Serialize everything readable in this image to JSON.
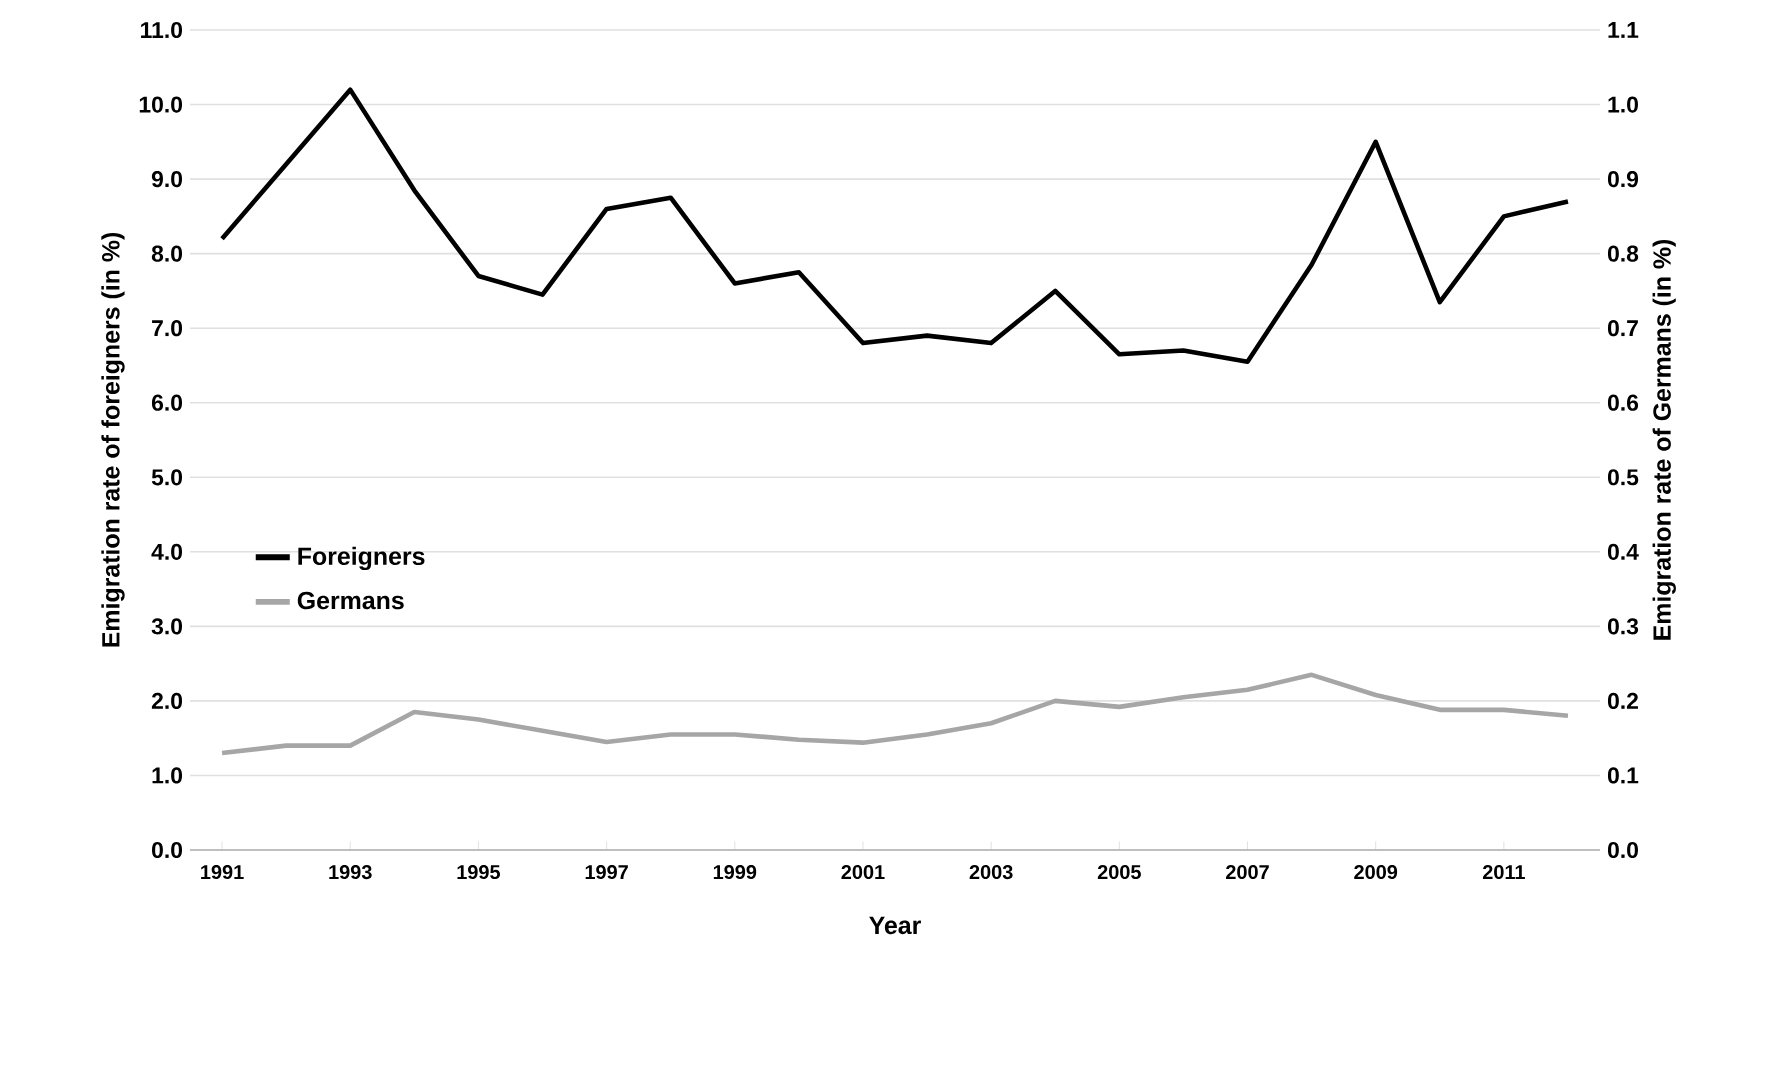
{
  "chart_data": {
    "type": "line",
    "xlabel": "Year",
    "ylabel": "Emigration rate of foreigners (in %)",
    "y2label": "Emigration rate of Germans (in %)",
    "x": [
      1991,
      1992,
      1993,
      1994,
      1995,
      1996,
      1997,
      1998,
      1999,
      2000,
      2001,
      2002,
      2003,
      2004,
      2005,
      2006,
      2007,
      2008,
      2009,
      2010,
      2011,
      2012
    ],
    "series": [
      {
        "name": "Foreigners",
        "color": "#000000",
        "values": [
          8.2,
          9.2,
          10.2,
          8.85,
          7.7,
          7.45,
          8.6,
          8.75,
          7.6,
          7.75,
          6.8,
          6.9,
          6.8,
          7.5,
          6.65,
          6.7,
          6.55,
          7.85,
          9.5,
          7.35,
          8.5,
          8.7
        ]
      },
      {
        "name": "Germans",
        "color": "#a6a6a6",
        "axis": "y2",
        "values": [
          0.13,
          0.14,
          0.14,
          0.185,
          0.175,
          0.16,
          0.145,
          0.155,
          0.155,
          0.148,
          0.144,
          0.155,
          0.17,
          0.2,
          0.192,
          0.205,
          0.215,
          0.235,
          0.208,
          0.188,
          0.188,
          0.18
        ]
      }
    ],
    "xlim": [
      1990.5,
      2012.5
    ],
    "xticks": [
      1991,
      1993,
      1995,
      1997,
      1999,
      2001,
      2003,
      2005,
      2007,
      2009,
      2011
    ],
    "ylim": [
      0,
      11
    ],
    "yticks": [
      {
        "value": 0,
        "label": "0.0"
      },
      {
        "value": 1,
        "label": "1.0"
      },
      {
        "value": 2,
        "label": "2.0"
      },
      {
        "value": 3,
        "label": "3.0"
      },
      {
        "value": 4,
        "label": "4.0"
      },
      {
        "value": 5,
        "label": "5.0"
      },
      {
        "value": 6,
        "label": "6.0"
      },
      {
        "value": 7,
        "label": "7.0"
      },
      {
        "value": 8,
        "label": "8.0"
      },
      {
        "value": 9,
        "label": "9.0"
      },
      {
        "value": 10,
        "label": "10.0"
      },
      {
        "value": 11,
        "label": "11.0"
      }
    ],
    "y2lim": [
      0,
      1.1
    ],
    "y2ticks": [
      {
        "value": 0,
        "label": "0.0"
      },
      {
        "value": 0.1,
        "label": "0.1"
      },
      {
        "value": 0.2,
        "label": "0.2"
      },
      {
        "value": 0.3,
        "label": "0.3"
      },
      {
        "value": 0.4,
        "label": "0.4"
      },
      {
        "value": 0.5,
        "label": "0.5"
      },
      {
        "value": 0.6,
        "label": "0.6"
      },
      {
        "value": 0.7,
        "label": "0.7"
      },
      {
        "value": 0.8,
        "label": "0.8"
      },
      {
        "value": 0.9,
        "label": "0.9"
      },
      {
        "value": 1.0,
        "label": "1.0"
      },
      {
        "value": 1.1,
        "label": "1.1"
      }
    ],
    "grid": "y",
    "legend": "left"
  }
}
